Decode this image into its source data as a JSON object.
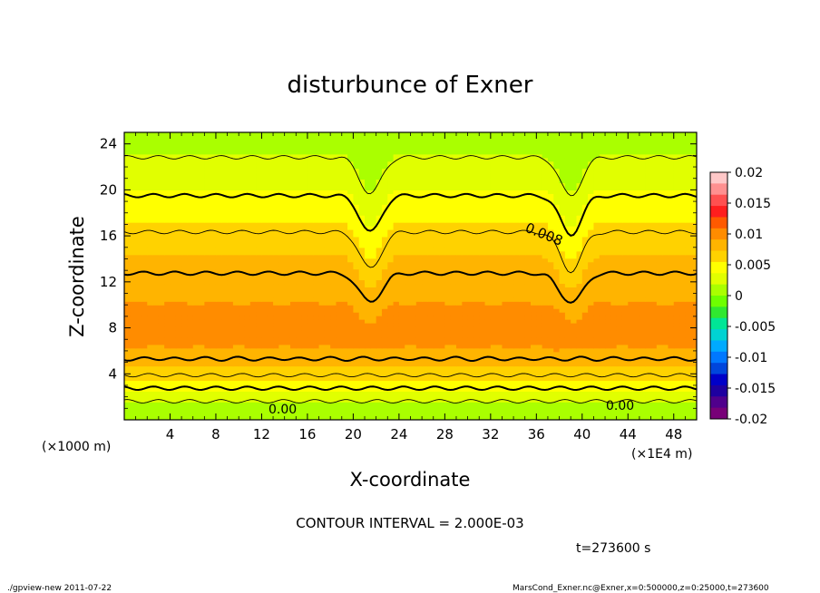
{
  "chart_data": {
    "type": "heatmap",
    "title": "disturbunce of Exner",
    "xlabel": "X-coordinate",
    "ylabel": "Z-coordinate",
    "x_unit": "(×1E4 m)",
    "y_unit": "(×1000 m)",
    "xlim": [
      0,
      50
    ],
    "ylim": [
      0,
      25
    ],
    "x_ticks": [
      4,
      8,
      12,
      16,
      20,
      24,
      28,
      32,
      36,
      40,
      44,
      48
    ],
    "y_ticks": [
      4,
      8,
      12,
      16,
      20,
      24
    ],
    "colorbar": {
      "min": -0.02,
      "max": 0.02,
      "labels": [
        "0.02",
        "0.015",
        "0.01",
        "0.005",
        "0",
        "-0.005",
        "-0.01",
        "-0.015",
        "-0.02"
      ],
      "colors": [
        "#ffc8c8",
        "#ff9090",
        "#ff5050",
        "#ff1e1e",
        "#ff5a00",
        "#ff8c00",
        "#ffb400",
        "#ffd200",
        "#ffff00",
        "#e1ff00",
        "#aaff00",
        "#6eff00",
        "#30e830",
        "#00e696",
        "#00d2d2",
        "#00aaff",
        "#0078ff",
        "#0046dc",
        "#0000c8",
        "#1e00a0",
        "#50008c",
        "#780078"
      ]
    },
    "contour_interval_text": "CONTOUR INTERVAL = 2.000E-03",
    "contour_labels": [
      "0.008",
      "0.00",
      "0.00"
    ],
    "time_label": "t=273600 s",
    "footer_left": "./gpview-new   2011-07-22",
    "footer_right": "MarsCond_Exner.nc@Exner,x=0:500000,z=0:25000,t=273600",
    "field_profile": {
      "z": [
        0,
        1,
        2,
        3,
        4,
        5,
        6,
        7,
        8,
        9,
        10,
        11,
        12,
        13,
        14,
        15,
        16,
        17,
        18,
        19,
        20,
        21,
        22,
        23,
        24,
        25
      ],
      "value": [
        0.0002,
        0.0012,
        0.0025,
        0.0045,
        0.0062,
        0.0076,
        0.0089,
        0.0096,
        0.0099,
        0.0097,
        0.0092,
        0.0087,
        0.0083,
        0.0079,
        0.0075,
        0.0069,
        0.0062,
        0.0056,
        0.0049,
        0.0043,
        0.0037,
        0.0031,
        0.0025,
        0.0019,
        0.0013,
        0.0008
      ]
    },
    "dips": [
      {
        "x": 21.5,
        "depth": 3.2
      },
      {
        "x": 39.0,
        "depth": 3.4
      }
    ]
  }
}
